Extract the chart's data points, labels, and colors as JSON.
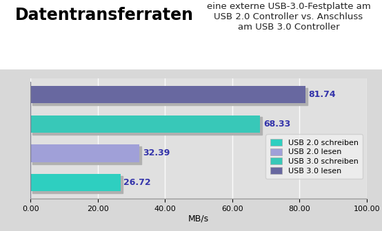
{
  "title": "Datentransferraten",
  "subtitle": "eine externe USB-3.0-Festplatte am\nUSB 2.0 Controller vs. Anschluss\nam USB 3.0 Controller",
  "categories": [
    "USB 2.0 schreiben",
    "USB 2.0 lesen",
    "USB 3.0 schreiben",
    "USB 3.0 lesen"
  ],
  "values": [
    26.72,
    32.39,
    68.33,
    81.74
  ],
  "bar_colors": [
    "#2ecfc0",
    "#a0a0d8",
    "#38c8b8",
    "#6868a0"
  ],
  "value_labels": [
    "26.72",
    "32.39",
    "68.33",
    "81.74"
  ],
  "xlabel": "MB/s",
  "xlim": [
    0,
    100
  ],
  "xticks": [
    0,
    20,
    40,
    60,
    80,
    100
  ],
  "xtick_labels": [
    "0.00",
    "20.00",
    "40.00",
    "60.00",
    "80.00",
    "100.00"
  ],
  "legend_labels": [
    "USB 2.0 schreiben",
    "USB 2.0 lesen",
    "USB 3.0 schreiben",
    "USB 3.0 lesen"
  ],
  "legend_colors": [
    "#2ecfc0",
    "#a0a0d8",
    "#38c8b8",
    "#6868a0"
  ],
  "title_bg_color": "#ffffff",
  "plot_bg_color": "#d8d8d8",
  "chart_bg_color": "#e0e0e0",
  "shadow_color": "#b0b0b0",
  "value_color": "#3333aa",
  "bar_height": 0.6,
  "title_fontsize": 17,
  "subtitle_fontsize": 9.5
}
